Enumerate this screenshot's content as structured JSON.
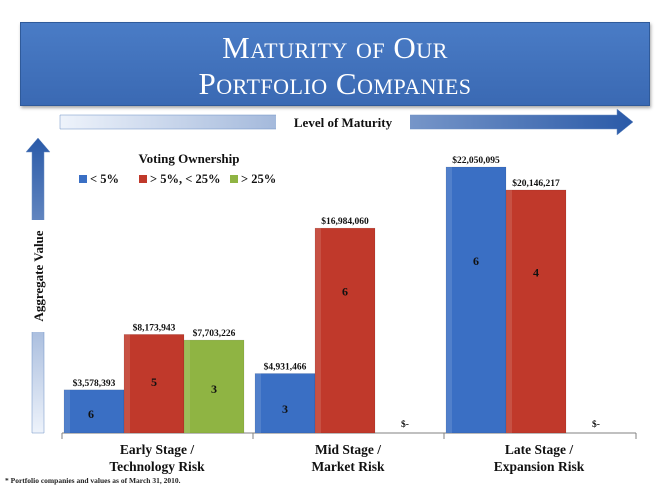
{
  "title": {
    "line1": "Maturity of Our",
    "line2": "Portfolio Companies"
  },
  "top_arrow_label": "Level of Maturity",
  "side_arrow_label": "Aggregate Value",
  "footnote": "* Portfolio companies and values as of March 31, 2010.",
  "colors": {
    "banner": "#3f72bd",
    "blue": "#3a6fc4",
    "red": "#c0392b",
    "green": "#8fb443"
  },
  "chart_data": {
    "type": "bar",
    "categories": [
      [
        "Early Stage /",
        "Technology Risk"
      ],
      [
        "Mid Stage /",
        "Market Risk"
      ],
      [
        "Late Stage /",
        "Expansion Risk"
      ]
    ],
    "legend": {
      "title": "Voting Ownership",
      "placement": "top-left"
    },
    "ylim": [
      0,
      22050095
    ],
    "series": [
      {
        "name": "< 5%",
        "color": "#3a6fc4",
        "values": [
          3578393,
          4931466,
          22050095
        ],
        "value_labels": [
          "$3,578,393",
          "$4,931,466",
          "$22,050,095"
        ],
        "counts": [
          "6",
          "3",
          "6"
        ]
      },
      {
        "name": "> 5%, < 25%",
        "color": "#c0392b",
        "values": [
          8173943,
          16984060,
          20146217
        ],
        "value_labels": [
          "$8,173,943",
          "$16,984,060",
          "$20,146,217"
        ],
        "counts": [
          "5",
          "6",
          "4"
        ]
      },
      {
        "name": "> 25%",
        "color": "#8fb443",
        "values": [
          7703226,
          0,
          0
        ],
        "value_labels": [
          "$7,703,226",
          "$-",
          "$-"
        ],
        "counts": [
          "3",
          "",
          ""
        ]
      }
    ]
  }
}
